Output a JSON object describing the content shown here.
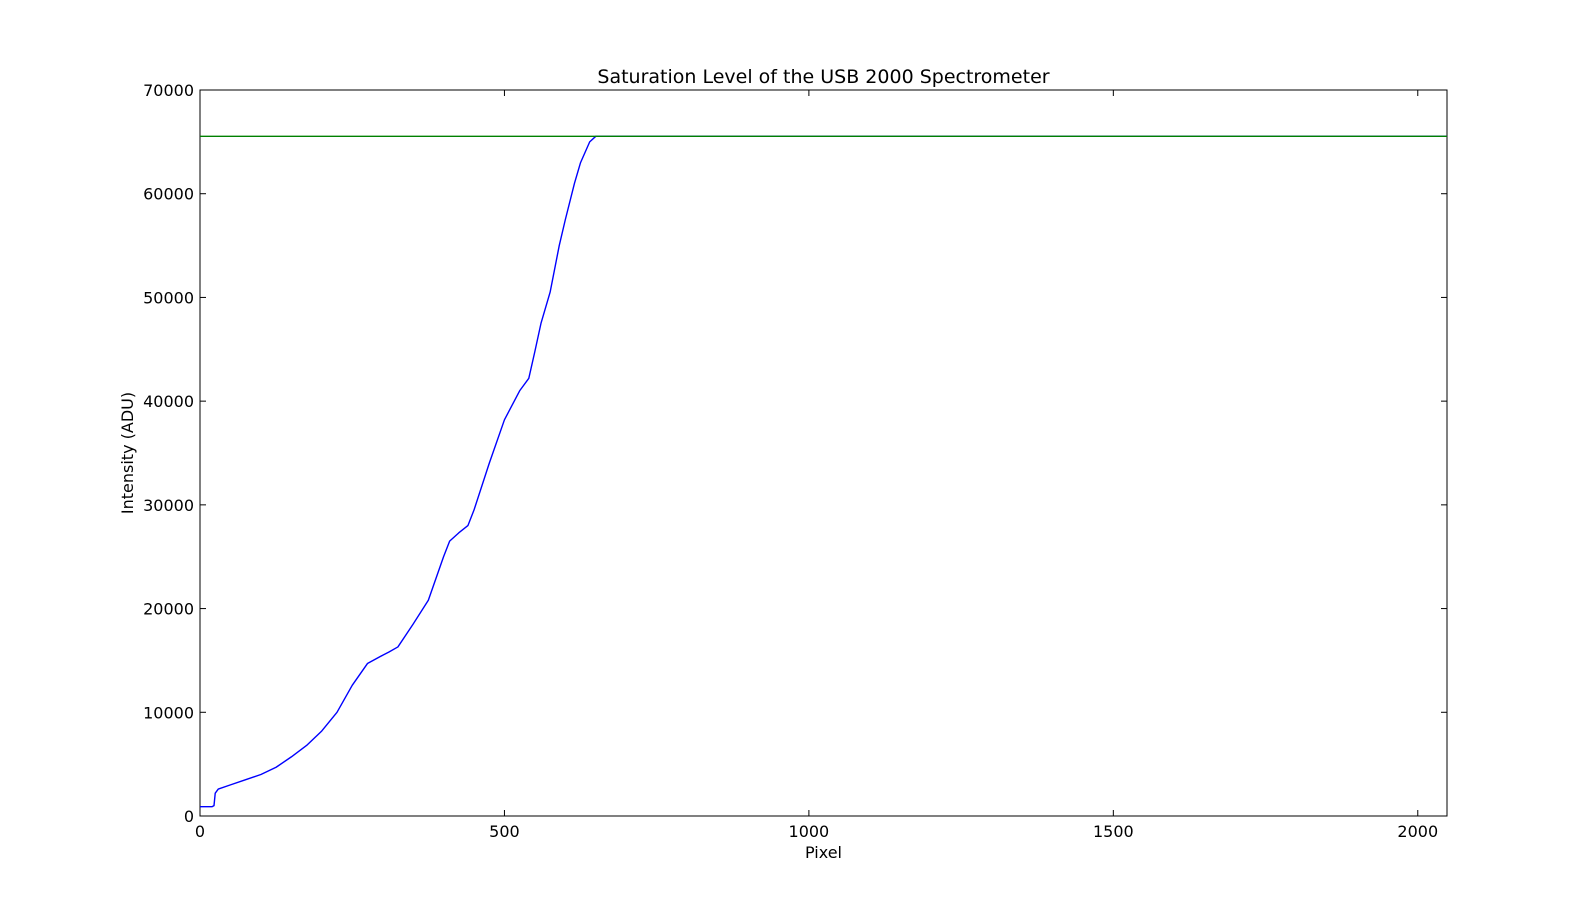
{
  "chart_data": {
    "type": "line",
    "title": "Saturation Level of the USB 2000 Spectrometer",
    "xlabel": "Pixel",
    "ylabel": "Intensity (ADU)",
    "xlim": [
      0,
      2048
    ],
    "ylim": [
      0,
      70000
    ],
    "xticks": [
      0,
      500,
      1000,
      1500,
      2000
    ],
    "yticks": [
      0,
      10000,
      20000,
      30000,
      40000,
      50000,
      60000,
      70000
    ],
    "grid": false,
    "legend": "none",
    "series": [
      {
        "color": "#0000ff",
        "x": [
          0,
          10,
          20,
          23,
          25,
          30,
          50,
          75,
          100,
          125,
          150,
          175,
          200,
          225,
          250,
          275,
          300,
          310,
          325,
          350,
          375,
          400,
          410,
          425,
          440,
          450,
          475,
          500,
          525,
          540,
          550,
          560,
          575,
          590,
          600,
          615,
          625,
          640,
          650,
          660,
          700,
          800,
          900,
          1000,
          1250,
          1500,
          1750,
          2000,
          2048
        ],
        "y": [
          900,
          900,
          900,
          1000,
          2200,
          2600,
          3000,
          3500,
          4000,
          4700,
          5700,
          6800,
          8200,
          10000,
          12600,
          14700,
          15500,
          15800,
          16300,
          18500,
          20800,
          25000,
          26500,
          27300,
          28000,
          29500,
          34000,
          38200,
          41000,
          42200,
          44800,
          47500,
          50500,
          55000,
          57500,
          61000,
          63000,
          65000,
          65535,
          65535,
          65535,
          65535,
          65535,
          65535,
          65535,
          65535,
          65535,
          65535,
          65535
        ]
      },
      {
        "color": "#008000",
        "x": [
          0,
          2048
        ],
        "y": [
          65535,
          65535
        ]
      }
    ]
  }
}
